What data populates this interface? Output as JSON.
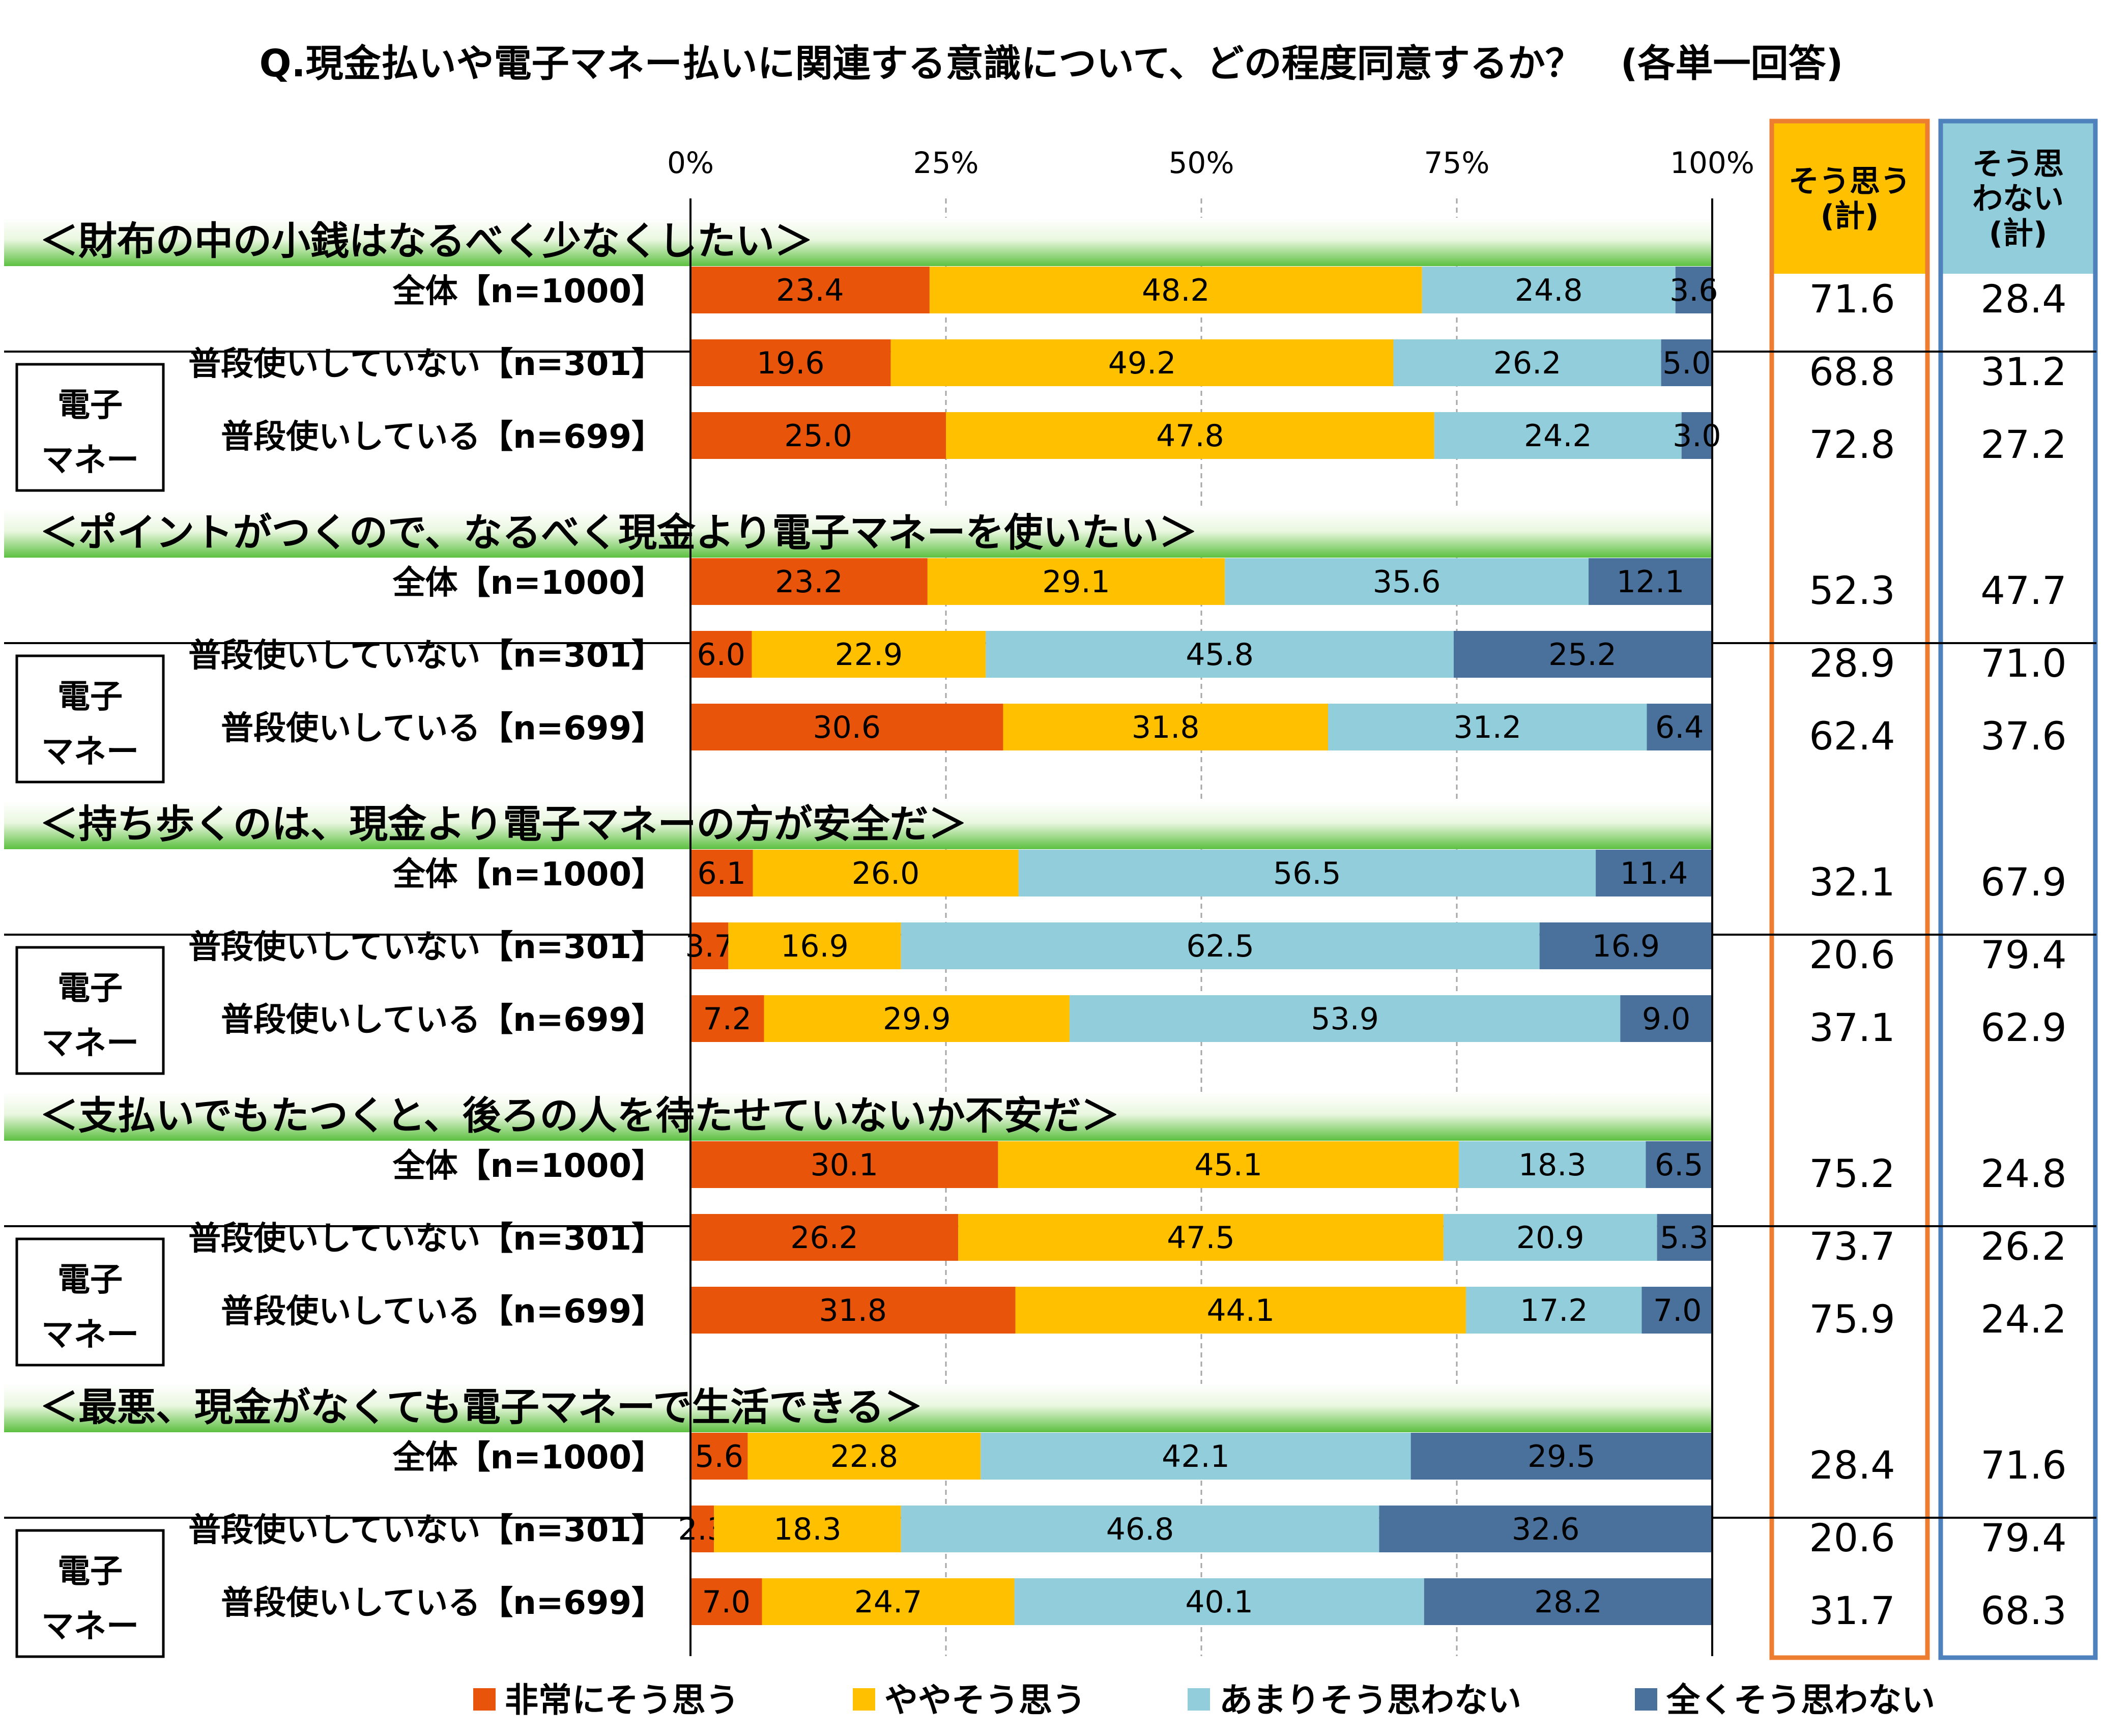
{
  "chart_data": {
    "type": "bar",
    "orientation": "horizontal",
    "stacked": "100%",
    "title": "Q.現金払いや電子マネー払いに関連する意識について、どの程度同意するか？　(各単一回答)",
    "x_ticks": [
      "0%",
      "25%",
      "50%",
      "75%",
      "100%"
    ],
    "xlim": [
      0,
      100
    ],
    "grid": true,
    "legend_position": "bottom",
    "group_label": [
      "電子",
      "マネー"
    ],
    "summary_columns": [
      {
        "label_lines": [
          "そう思う",
          "(計)"
        ],
        "header_color": "#FFC000",
        "border_color": "#ED7D31"
      },
      {
        "label_lines": [
          "そう思",
          "わない",
          "(計)"
        ],
        "header_color": "#92CDDC",
        "border_color": "#4F81BD"
      }
    ],
    "series": [
      {
        "name": "非常にそう思う",
        "color": "#E8550A"
      },
      {
        "name": "ややそう思う",
        "color": "#FFC000"
      },
      {
        "name": "あまりそう思わない",
        "color": "#92CDDC"
      },
      {
        "name": "全くそう思わない",
        "color": "#4A709C"
      }
    ],
    "sections": [
      {
        "title": "＜財布の中の小銭はなるべく少なくしたい＞",
        "rows": [
          {
            "label": "全体【n=1000】",
            "values": [
              23.4,
              48.2,
              24.8,
              3.6
            ],
            "agree": 71.6,
            "disagree": 28.4
          },
          {
            "label": "普段使いしていない【n=301】",
            "values": [
              19.6,
              49.2,
              26.2,
              5.0
            ],
            "agree": 68.8,
            "disagree": 31.2
          },
          {
            "label": "普段使いしている【n=699】",
            "values": [
              25.0,
              47.8,
              24.2,
              3.0
            ],
            "agree": 72.8,
            "disagree": 27.2
          }
        ]
      },
      {
        "title": "＜ポイントがつくので、なるべく現金より電子マネーを使いたい＞",
        "rows": [
          {
            "label": "全体【n=1000】",
            "values": [
              23.2,
              29.1,
              35.6,
              12.1
            ],
            "agree": 52.3,
            "disagree": 47.7
          },
          {
            "label": "普段使いしていない【n=301】",
            "values": [
              6.0,
              22.9,
              45.8,
              25.2
            ],
            "agree": 28.9,
            "disagree": 71.0
          },
          {
            "label": "普段使いしている【n=699】",
            "values": [
              30.6,
              31.8,
              31.2,
              6.4
            ],
            "agree": 62.4,
            "disagree": 37.6
          }
        ]
      },
      {
        "title": "＜持ち歩くのは、現金より電子マネーの方が安全だ＞",
        "rows": [
          {
            "label": "全体【n=1000】",
            "values": [
              6.1,
              26.0,
              56.5,
              11.4
            ],
            "agree": 32.1,
            "disagree": 67.9
          },
          {
            "label": "普段使いしていない【n=301】",
            "values": [
              3.7,
              16.9,
              62.5,
              16.9
            ],
            "agree": 20.6,
            "disagree": 79.4
          },
          {
            "label": "普段使いしている【n=699】",
            "values": [
              7.2,
              29.9,
              53.9,
              9.0
            ],
            "agree": 37.1,
            "disagree": 62.9
          }
        ]
      },
      {
        "title": "＜支払いでもたつくと、後ろの人を待たせていないか不安だ＞",
        "rows": [
          {
            "label": "全体【n=1000】",
            "values": [
              30.1,
              45.1,
              18.3,
              6.5
            ],
            "agree": 75.2,
            "disagree": 24.8
          },
          {
            "label": "普段使いしていない【n=301】",
            "values": [
              26.2,
              47.5,
              20.9,
              5.3
            ],
            "agree": 73.7,
            "disagree": 26.2
          },
          {
            "label": "普段使いしている【n=699】",
            "values": [
              31.8,
              44.1,
              17.2,
              7.0
            ],
            "agree": 75.9,
            "disagree": 24.2
          }
        ]
      },
      {
        "title": "＜最悪、現金がなくても電子マネーで生活できる＞",
        "rows": [
          {
            "label": "全体【n=1000】",
            "values": [
              5.6,
              22.8,
              42.1,
              29.5
            ],
            "agree": 28.4,
            "disagree": 71.6
          },
          {
            "label": "普段使いしていない【n=301】",
            "values": [
              2.3,
              18.3,
              46.8,
              32.6
            ],
            "agree": 20.6,
            "disagree": 79.4
          },
          {
            "label": "普段使いしている【n=699】",
            "values": [
              7.0,
              24.7,
              40.1,
              28.2
            ],
            "agree": 31.7,
            "disagree": 68.3
          }
        ]
      }
    ]
  }
}
